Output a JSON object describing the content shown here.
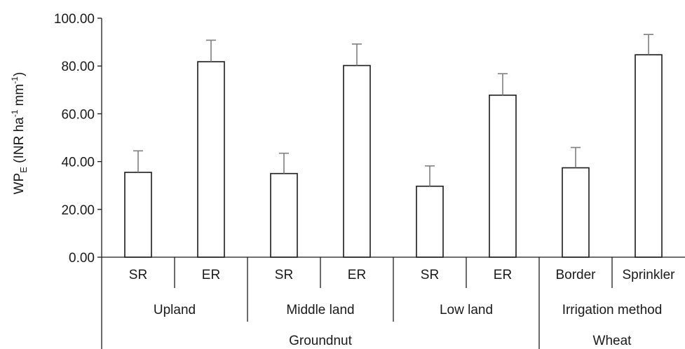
{
  "chart_data": {
    "type": "bar",
    "ylabel_main": "WP",
    "ylabel_sub": "E",
    "ylabel_rest_a": " (INR ha",
    "ylabel_sup_a": "-1",
    "ylabel_rest_b": " mm",
    "ylabel_sup_b": "-1",
    "ylabel_rest_c": ")",
    "ylim": [
      0,
      100
    ],
    "yticks": [
      "0.00",
      "20.00",
      "40.00",
      "60.00",
      "80.00",
      "100.00"
    ],
    "categories": [
      "SR",
      "ER",
      "SR",
      "ER",
      "SR",
      "ER",
      "Border",
      "Sprinkler"
    ],
    "values": [
      35.5,
      81.8,
      35.0,
      80.2,
      29.7,
      67.8,
      37.4,
      84.7
    ],
    "errors": [
      9.0,
      9.0,
      8.5,
      9.0,
      8.5,
      9.0,
      8.5,
      8.5
    ],
    "groups_level2": [
      {
        "label": "Upland",
        "span": [
          0,
          1
        ]
      },
      {
        "label": "Middle land",
        "span": [
          2,
          3
        ]
      },
      {
        "label": "Low land",
        "span": [
          4,
          5
        ]
      },
      {
        "label": "Irrigation method",
        "span": [
          6,
          7
        ]
      }
    ],
    "groups_level3": [
      {
        "label": "Groundnut",
        "span": [
          0,
          5
        ]
      },
      {
        "label": "Wheat",
        "span": [
          6,
          7
        ]
      }
    ],
    "bar_fill": "#ffffff",
    "bar_stroke": "#1a1a1a",
    "errorbar_color": "#7f7f7f",
    "grid": false,
    "legend": "none"
  }
}
